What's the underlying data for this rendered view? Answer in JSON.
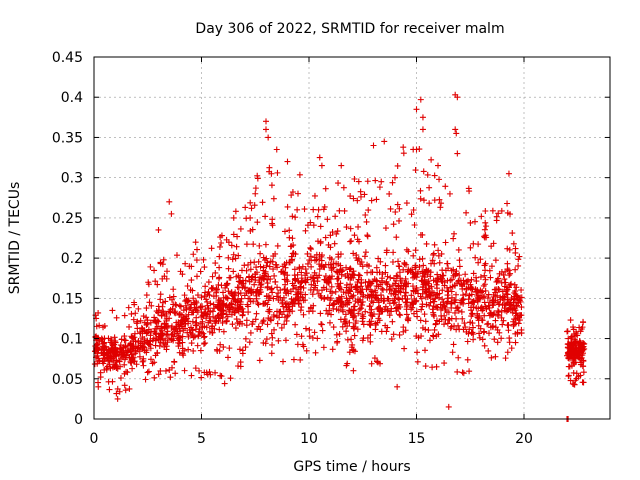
{
  "chart_data": {
    "type": "scatter",
    "title": "Day 306 of 2022, SRMTID for receiver malm",
    "xlabel": "GPS time / hours",
    "ylabel": "SRMTID / TECUs",
    "xlim": [
      0,
      24
    ],
    "ylim": [
      0,
      0.45
    ],
    "x_ticks": [
      0,
      5,
      10,
      15,
      20
    ],
    "x_tick_labels": [
      "0",
      "5",
      "10",
      "15",
      "20"
    ],
    "y_ticks": [
      0,
      0.05,
      0.1,
      0.15,
      0.2,
      0.25,
      0.3,
      0.35,
      0.4,
      0.45
    ],
    "y_tick_labels": [
      "0",
      "0.05",
      "0.1",
      "0.15",
      "0.2",
      "0.25",
      "0.3",
      "0.35",
      "0.4",
      "0.45"
    ],
    "grid": true,
    "marker": "plus",
    "series": [
      {
        "name": "SRMTID",
        "color": "#e00000",
        "envelope": [
          {
            "t": 0.0,
            "lo": 0.04,
            "mid": 0.09,
            "hi": 0.13
          },
          {
            "t": 1.0,
            "lo": 0.03,
            "mid": 0.08,
            "hi": 0.14
          },
          {
            "t": 2.0,
            "lo": 0.04,
            "mid": 0.09,
            "hi": 0.15
          },
          {
            "t": 3.0,
            "lo": 0.05,
            "mid": 0.11,
            "hi": 0.22
          },
          {
            "t": 4.0,
            "lo": 0.05,
            "mid": 0.12,
            "hi": 0.22
          },
          {
            "t": 5.0,
            "lo": 0.05,
            "mid": 0.13,
            "hi": 0.22
          },
          {
            "t": 6.0,
            "lo": 0.04,
            "mid": 0.14,
            "hi": 0.24
          },
          {
            "t": 7.0,
            "lo": 0.06,
            "mid": 0.15,
            "hi": 0.28
          },
          {
            "t": 8.0,
            "lo": 0.07,
            "mid": 0.17,
            "hi": 0.32
          },
          {
            "t": 9.0,
            "lo": 0.07,
            "mid": 0.16,
            "hi": 0.3
          },
          {
            "t": 10.0,
            "lo": 0.07,
            "mid": 0.17,
            "hi": 0.32
          },
          {
            "t": 11.0,
            "lo": 0.07,
            "mid": 0.17,
            "hi": 0.3
          },
          {
            "t": 12.0,
            "lo": 0.06,
            "mid": 0.15,
            "hi": 0.3
          },
          {
            "t": 13.0,
            "lo": 0.06,
            "mid": 0.15,
            "hi": 0.3
          },
          {
            "t": 14.0,
            "lo": 0.06,
            "mid": 0.15,
            "hi": 0.32
          },
          {
            "t": 15.0,
            "lo": 0.07,
            "mid": 0.17,
            "hi": 0.38
          },
          {
            "t": 16.0,
            "lo": 0.06,
            "mid": 0.15,
            "hi": 0.3
          },
          {
            "t": 17.0,
            "lo": 0.05,
            "mid": 0.15,
            "hi": 0.36
          },
          {
            "t": 18.0,
            "lo": 0.07,
            "mid": 0.14,
            "hi": 0.26
          },
          {
            "t": 19.0,
            "lo": 0.07,
            "mid": 0.15,
            "hi": 0.29
          },
          {
            "t": 19.9,
            "lo": 0.08,
            "mid": 0.13,
            "hi": 0.2
          }
        ],
        "late_segment": {
          "t_start": 22.0,
          "t_end": 22.8,
          "lo": 0.04,
          "mid": 0.085,
          "hi": 0.13
        },
        "notable_points": [
          {
            "x": 0.1,
            "y": 0.125
          },
          {
            "x": 0.2,
            "y": 0.04
          },
          {
            "x": 1.1,
            "y": 0.025
          },
          {
            "x": 3.0,
            "y": 0.235
          },
          {
            "x": 3.5,
            "y": 0.27
          },
          {
            "x": 3.6,
            "y": 0.255
          },
          {
            "x": 6.5,
            "y": 0.25
          },
          {
            "x": 7.5,
            "y": 0.28
          },
          {
            "x": 8.0,
            "y": 0.37
          },
          {
            "x": 8.0,
            "y": 0.36
          },
          {
            "x": 8.1,
            "y": 0.35
          },
          {
            "x": 8.5,
            "y": 0.335
          },
          {
            "x": 9.0,
            "y": 0.32
          },
          {
            "x": 10.5,
            "y": 0.325
          },
          {
            "x": 10.6,
            "y": 0.315
          },
          {
            "x": 11.5,
            "y": 0.315
          },
          {
            "x": 13.0,
            "y": 0.34
          },
          {
            "x": 13.5,
            "y": 0.345
          },
          {
            "x": 14.0,
            "y": 0.3
          },
          {
            "x": 14.1,
            "y": 0.04
          },
          {
            "x": 15.0,
            "y": 0.385
          },
          {
            "x": 15.2,
            "y": 0.397
          },
          {
            "x": 15.3,
            "y": 0.375
          },
          {
            "x": 15.3,
            "y": 0.36
          },
          {
            "x": 15.0,
            "y": 0.335
          },
          {
            "x": 16.0,
            "y": 0.315
          },
          {
            "x": 16.8,
            "y": 0.403
          },
          {
            "x": 16.9,
            "y": 0.4
          },
          {
            "x": 16.8,
            "y": 0.36
          },
          {
            "x": 16.85,
            "y": 0.355
          },
          {
            "x": 16.9,
            "y": 0.33
          },
          {
            "x": 16.5,
            "y": 0.015
          },
          {
            "x": 19.3,
            "y": 0.305
          },
          {
            "x": 22.0,
            "y": 0.0
          },
          {
            "x": 22.05,
            "y": 0.0
          }
        ]
      }
    ]
  }
}
